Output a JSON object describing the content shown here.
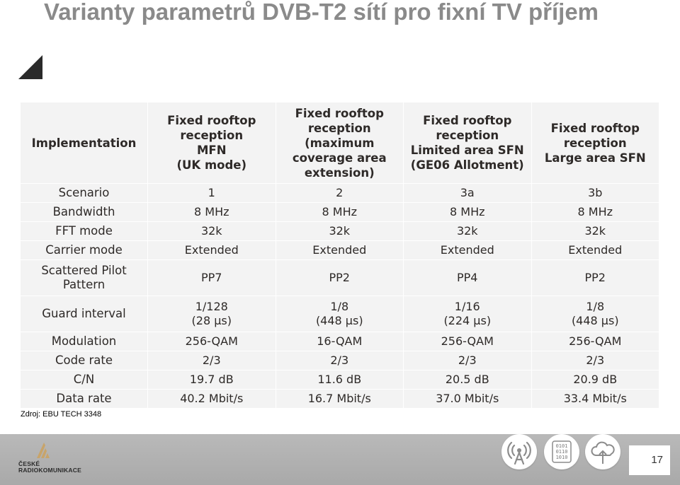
{
  "title": "Varianty parametrů DVB-T2 sítí pro fixní TV příjem",
  "table": {
    "header_label": "Implementation",
    "columns": [
      [
        "Fixed rooftop",
        "reception",
        "MFN",
        "(UK mode)"
      ],
      [
        "Fixed rooftop",
        "reception",
        "(maximum",
        "coverage area",
        "extension)"
      ],
      [
        "Fixed rooftop",
        "reception",
        "Limited area SFN",
        "(GE06 Allotment)"
      ],
      [
        "Fixed rooftop",
        "reception",
        "Large area SFN"
      ]
    ],
    "rows": [
      {
        "label": "Scenario",
        "values": [
          "1",
          "2",
          "3a",
          "3b"
        ]
      },
      {
        "label": "Bandwidth",
        "values": [
          "8 MHz",
          "8 MHz",
          "8 MHz",
          "8 MHz"
        ]
      },
      {
        "label": "FFT mode",
        "values": [
          "32k",
          "32k",
          "32k",
          "32k"
        ]
      },
      {
        "label": "Carrier mode",
        "values": [
          "Extended",
          "Extended",
          "Extended",
          "Extended"
        ]
      },
      {
        "label": [
          "Scattered Pilot",
          "Pattern"
        ],
        "values": [
          "PP7",
          "PP2",
          "PP4",
          "PP2"
        ]
      },
      {
        "label": "Guard interval",
        "values": [
          [
            "1/128",
            "(28 µs)"
          ],
          [
            "1/8",
            "(448 µs)"
          ],
          [
            "1/16",
            "(224 µs)"
          ],
          [
            "1/8",
            "(448 µs)"
          ]
        ]
      },
      {
        "label": "Modulation",
        "values": [
          "256-QAM",
          "16-QAM",
          "256-QAM",
          "256-QAM"
        ]
      },
      {
        "label": "Code rate",
        "values": [
          "2/3",
          "2/3",
          "2/3",
          "2/3"
        ]
      },
      {
        "label": "C/N",
        "values": [
          "19.7 dB",
          "11.6 dB",
          "20.5 dB",
          "20.9 dB"
        ]
      },
      {
        "label": "Data rate",
        "values": [
          "40.2 Mbit/s",
          "16.7 Mbit/s",
          "37.0 Mbit/s",
          "33.4 Mbit/s"
        ]
      }
    ]
  },
  "source": "Zdroj: EBU TECH 3348",
  "footer": {
    "logo_line1": "ČESKÉ",
    "logo_line2": "RADIOKOMUNIKACE",
    "binary_icon_text": [
      "0101",
      "0110",
      "1010"
    ],
    "icons": [
      "antenna-signal-icon",
      "binary-data-icon",
      "cloud-upload-icon"
    ],
    "page_number": "17"
  },
  "colors": {
    "title": "#8a8a8a",
    "table_bg": "#f3f3f3",
    "footer_bg": "#b0b0b0",
    "logo_accent": "#c8a46a"
  }
}
